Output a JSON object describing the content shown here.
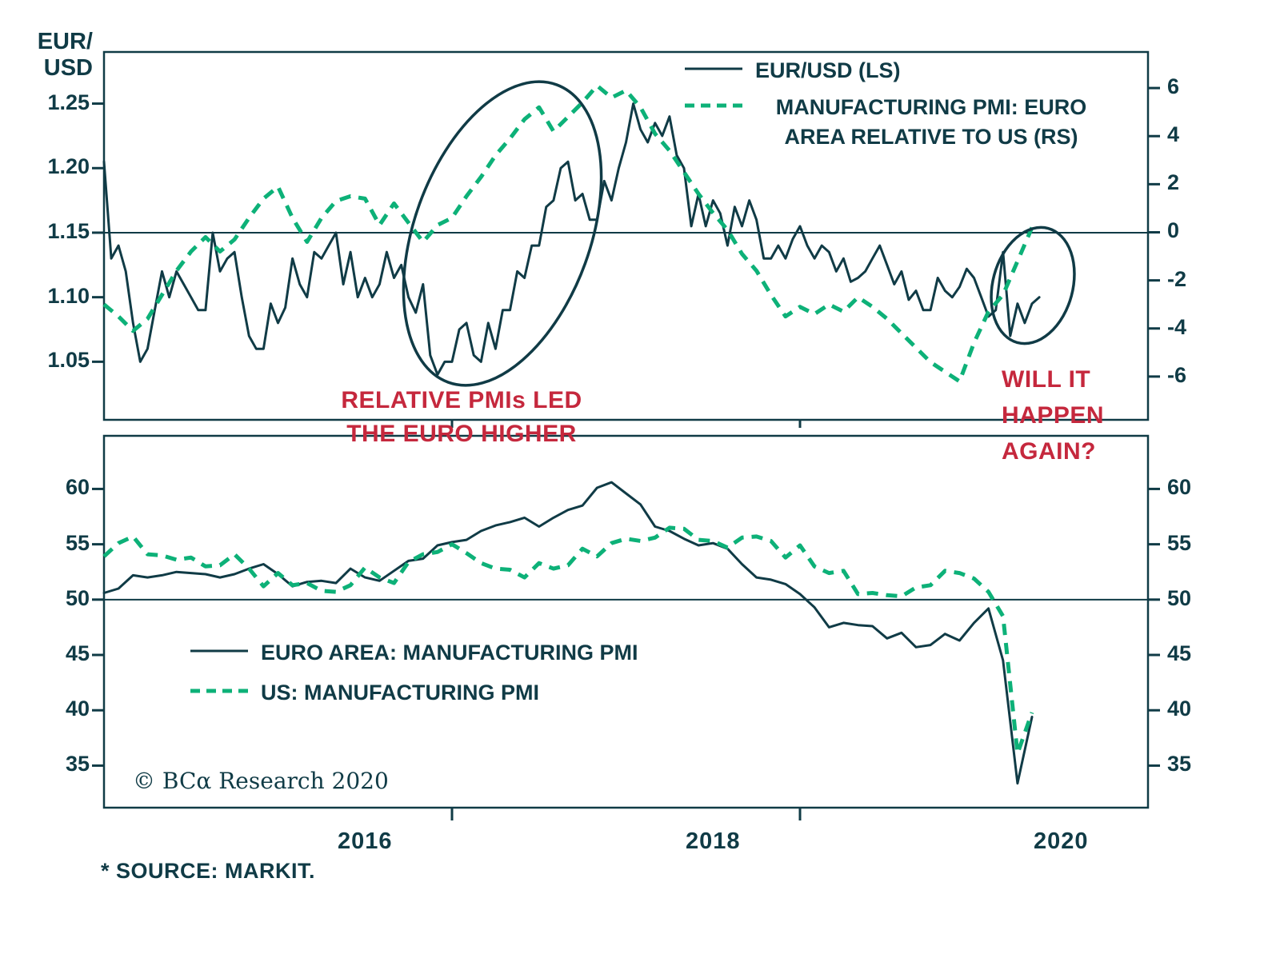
{
  "colors": {
    "dark": "#103b46",
    "green": "#0db178",
    "red": "#c5283d"
  },
  "labels": {
    "axis_title": "EUR/\nUSD"
  },
  "legend": {
    "top": [
      {
        "label": "EUR/USD (LS)"
      },
      {
        "label": "MANUFACTURING PMI: EURO\nAREA RELATIVE TO US (RS)"
      }
    ],
    "bottom": [
      {
        "label": "EURO AREA: MANUFACTURING PMI"
      },
      {
        "label": "US: MANUFACTURING PMI"
      }
    ]
  },
  "annotations": {
    "led": "RELATIVE PMIs LED\nTHE EURO HIGHER",
    "again": "WILL IT\nHAPPEN\nAGAIN?"
  },
  "footer": {
    "copyright": "© BCα Research 2020",
    "source": "* SOURCE: MARKIT."
  },
  "chart_data": [
    {
      "type": "line",
      "name": "eurusd-vs-relative-pmi",
      "x_axis": {
        "start": "2015-01",
        "span_months": 72,
        "tick_marks_months": [
          24,
          48
        ],
        "labels": []
      },
      "y_left": {
        "label": "EUR/USD",
        "range": [
          1.005,
          1.29
        ],
        "ticks": [
          "1.25",
          "1.20",
          "1.15",
          "1.10",
          "1.05"
        ],
        "baseline": 1.15
      },
      "y_right": {
        "label": "Manufacturing PMI: Euro area relative to US",
        "range": [
          -7.8,
          7.5
        ],
        "ticks": [
          "6",
          "4",
          "2",
          "0",
          "-2",
          "-4",
          "-6"
        ],
        "baseline": 0
      },
      "series": [
        {
          "name": "EUR/USD (LS)",
          "axis": "left",
          "line": "solid",
          "points_per_month": 2,
          "values": [
            1.205,
            1.13,
            1.14,
            1.12,
            1.08,
            1.05,
            1.06,
            1.09,
            1.12,
            1.1,
            1.12,
            1.11,
            1.1,
            1.09,
            1.09,
            1.15,
            1.12,
            1.13,
            1.135,
            1.1,
            1.07,
            1.06,
            1.06,
            1.095,
            1.08,
            1.092,
            1.13,
            1.11,
            1.1,
            1.135,
            1.13,
            1.14,
            1.15,
            1.11,
            1.135,
            1.1,
            1.115,
            1.1,
            1.11,
            1.135,
            1.115,
            1.125,
            1.1,
            1.088,
            1.11,
            1.055,
            1.04,
            1.05,
            1.05,
            1.075,
            1.08,
            1.055,
            1.05,
            1.08,
            1.06,
            1.09,
            1.09,
            1.12,
            1.115,
            1.14,
            1.14,
            1.17,
            1.175,
            1.2,
            1.205,
            1.175,
            1.18,
            1.16,
            1.16,
            1.19,
            1.175,
            1.2,
            1.22,
            1.25,
            1.23,
            1.22,
            1.235,
            1.225,
            1.24,
            1.21,
            1.2,
            1.155,
            1.18,
            1.155,
            1.175,
            1.165,
            1.14,
            1.17,
            1.155,
            1.175,
            1.16,
            1.13,
            1.13,
            1.14,
            1.13,
            1.145,
            1.155,
            1.14,
            1.13,
            1.14,
            1.135,
            1.12,
            1.13,
            1.112,
            1.115,
            1.12,
            1.13,
            1.14,
            1.125,
            1.11,
            1.12,
            1.098,
            1.105,
            1.09,
            1.09,
            1.115,
            1.105,
            1.1,
            1.108,
            1.122,
            1.115,
            1.1,
            1.085,
            1.09,
            1.135,
            1.07,
            1.095,
            1.08,
            1.095,
            1.1
          ]
        },
        {
          "name": "MANUFACTURING PMI: EURO AREA RELATIVE TO US (RS)",
          "axis": "right",
          "line": "dashed",
          "points_per_month": 1,
          "values": [
            -3.0,
            -3.5,
            -4.1,
            -3.6,
            -2.6,
            -1.6,
            -0.8,
            -0.2,
            -0.8,
            -0.3,
            0.6,
            1.4,
            1.9,
            0.6,
            -0.4,
            0.6,
            1.3,
            1.5,
            1.4,
            0.3,
            1.2,
            0.4,
            -0.4,
            0.3,
            0.6,
            1.5,
            2.3,
            3.2,
            3.9,
            4.7,
            5.2,
            4.2,
            4.8,
            5.4,
            6.1,
            5.6,
            5.9,
            5.2,
            4.1,
            3.4,
            2.5,
            1.6,
            0.8,
            0.1,
            -0.9,
            -1.6,
            -2.6,
            -3.5,
            -3.1,
            -3.4,
            -3.0,
            -3.3,
            -2.7,
            -3.1,
            -3.6,
            -4.2,
            -4.8,
            -5.4,
            -5.8,
            -6.2,
            -4.6,
            -3.3,
            -2.6,
            -1.2,
            0.2
          ]
        }
      ]
    },
    {
      "type": "line",
      "name": "manufacturing-pmi-levels",
      "x_axis": {
        "start": "2015-01",
        "span_months": 72,
        "tick_marks_months": [
          24,
          48
        ],
        "labels": [
          {
            "text": "2016",
            "month": 18
          },
          {
            "text": "2018",
            "month": 42
          },
          {
            "text": "2020",
            "month": 66
          }
        ]
      },
      "y_left": {
        "label": "Manufacturing PMI",
        "range": [
          31.2,
          64.8
        ],
        "ticks": [
          "60",
          "55",
          "50",
          "45",
          "40",
          "35"
        ],
        "baseline": 50
      },
      "y_right": {
        "label": "Manufacturing PMI",
        "range": [
          31.2,
          64.8
        ],
        "ticks": [
          "60",
          "55",
          "50",
          "45",
          "40",
          "35"
        ],
        "baseline": null
      },
      "series": [
        {
          "name": "EURO AREA: MANUFACTURING PMI",
          "axis": "left",
          "line": "solid",
          "points_per_month": 1,
          "values": [
            50.6,
            51.0,
            52.2,
            52.0,
            52.2,
            52.5,
            52.4,
            52.3,
            52.0,
            52.3,
            52.8,
            53.2,
            52.3,
            51.2,
            51.6,
            51.7,
            51.5,
            52.8,
            52.0,
            51.7,
            52.6,
            53.5,
            53.7,
            54.9,
            55.2,
            55.4,
            56.2,
            56.7,
            57.0,
            57.4,
            56.6,
            57.4,
            58.1,
            58.5,
            60.1,
            60.6,
            59.6,
            58.6,
            56.6,
            56.2,
            55.5,
            54.9,
            55.1,
            54.6,
            53.2,
            52.0,
            51.8,
            51.4,
            50.5,
            49.3,
            47.5,
            47.9,
            47.7,
            47.6,
            46.5,
            47.0,
            45.7,
            45.9,
            46.9,
            46.3,
            47.9,
            49.2,
            44.5,
            33.4,
            39.4
          ]
        },
        {
          "name": "US: MANUFACTURING PMI",
          "axis": "left",
          "line": "dashed",
          "points_per_month": 1,
          "values": [
            53.9,
            55.1,
            55.7,
            54.1,
            54.0,
            53.6,
            53.8,
            53.0,
            53.1,
            54.1,
            52.8,
            51.2,
            52.4,
            51.3,
            51.5,
            50.8,
            50.7,
            51.3,
            52.9,
            52.0,
            51.5,
            53.4,
            54.1,
            54.3,
            55.0,
            54.2,
            53.3,
            52.8,
            52.7,
            52.0,
            53.3,
            52.8,
            53.1,
            54.6,
            53.9,
            55.1,
            55.5,
            55.3,
            55.6,
            56.5,
            56.4,
            55.4,
            55.3,
            54.7,
            55.6,
            55.7,
            55.3,
            53.8,
            54.9,
            53.0,
            52.4,
            52.6,
            50.5,
            50.6,
            50.4,
            50.3,
            51.1,
            51.3,
            52.6,
            52.4,
            51.9,
            50.7,
            48.5,
            36.1,
            39.8
          ]
        }
      ]
    }
  ]
}
